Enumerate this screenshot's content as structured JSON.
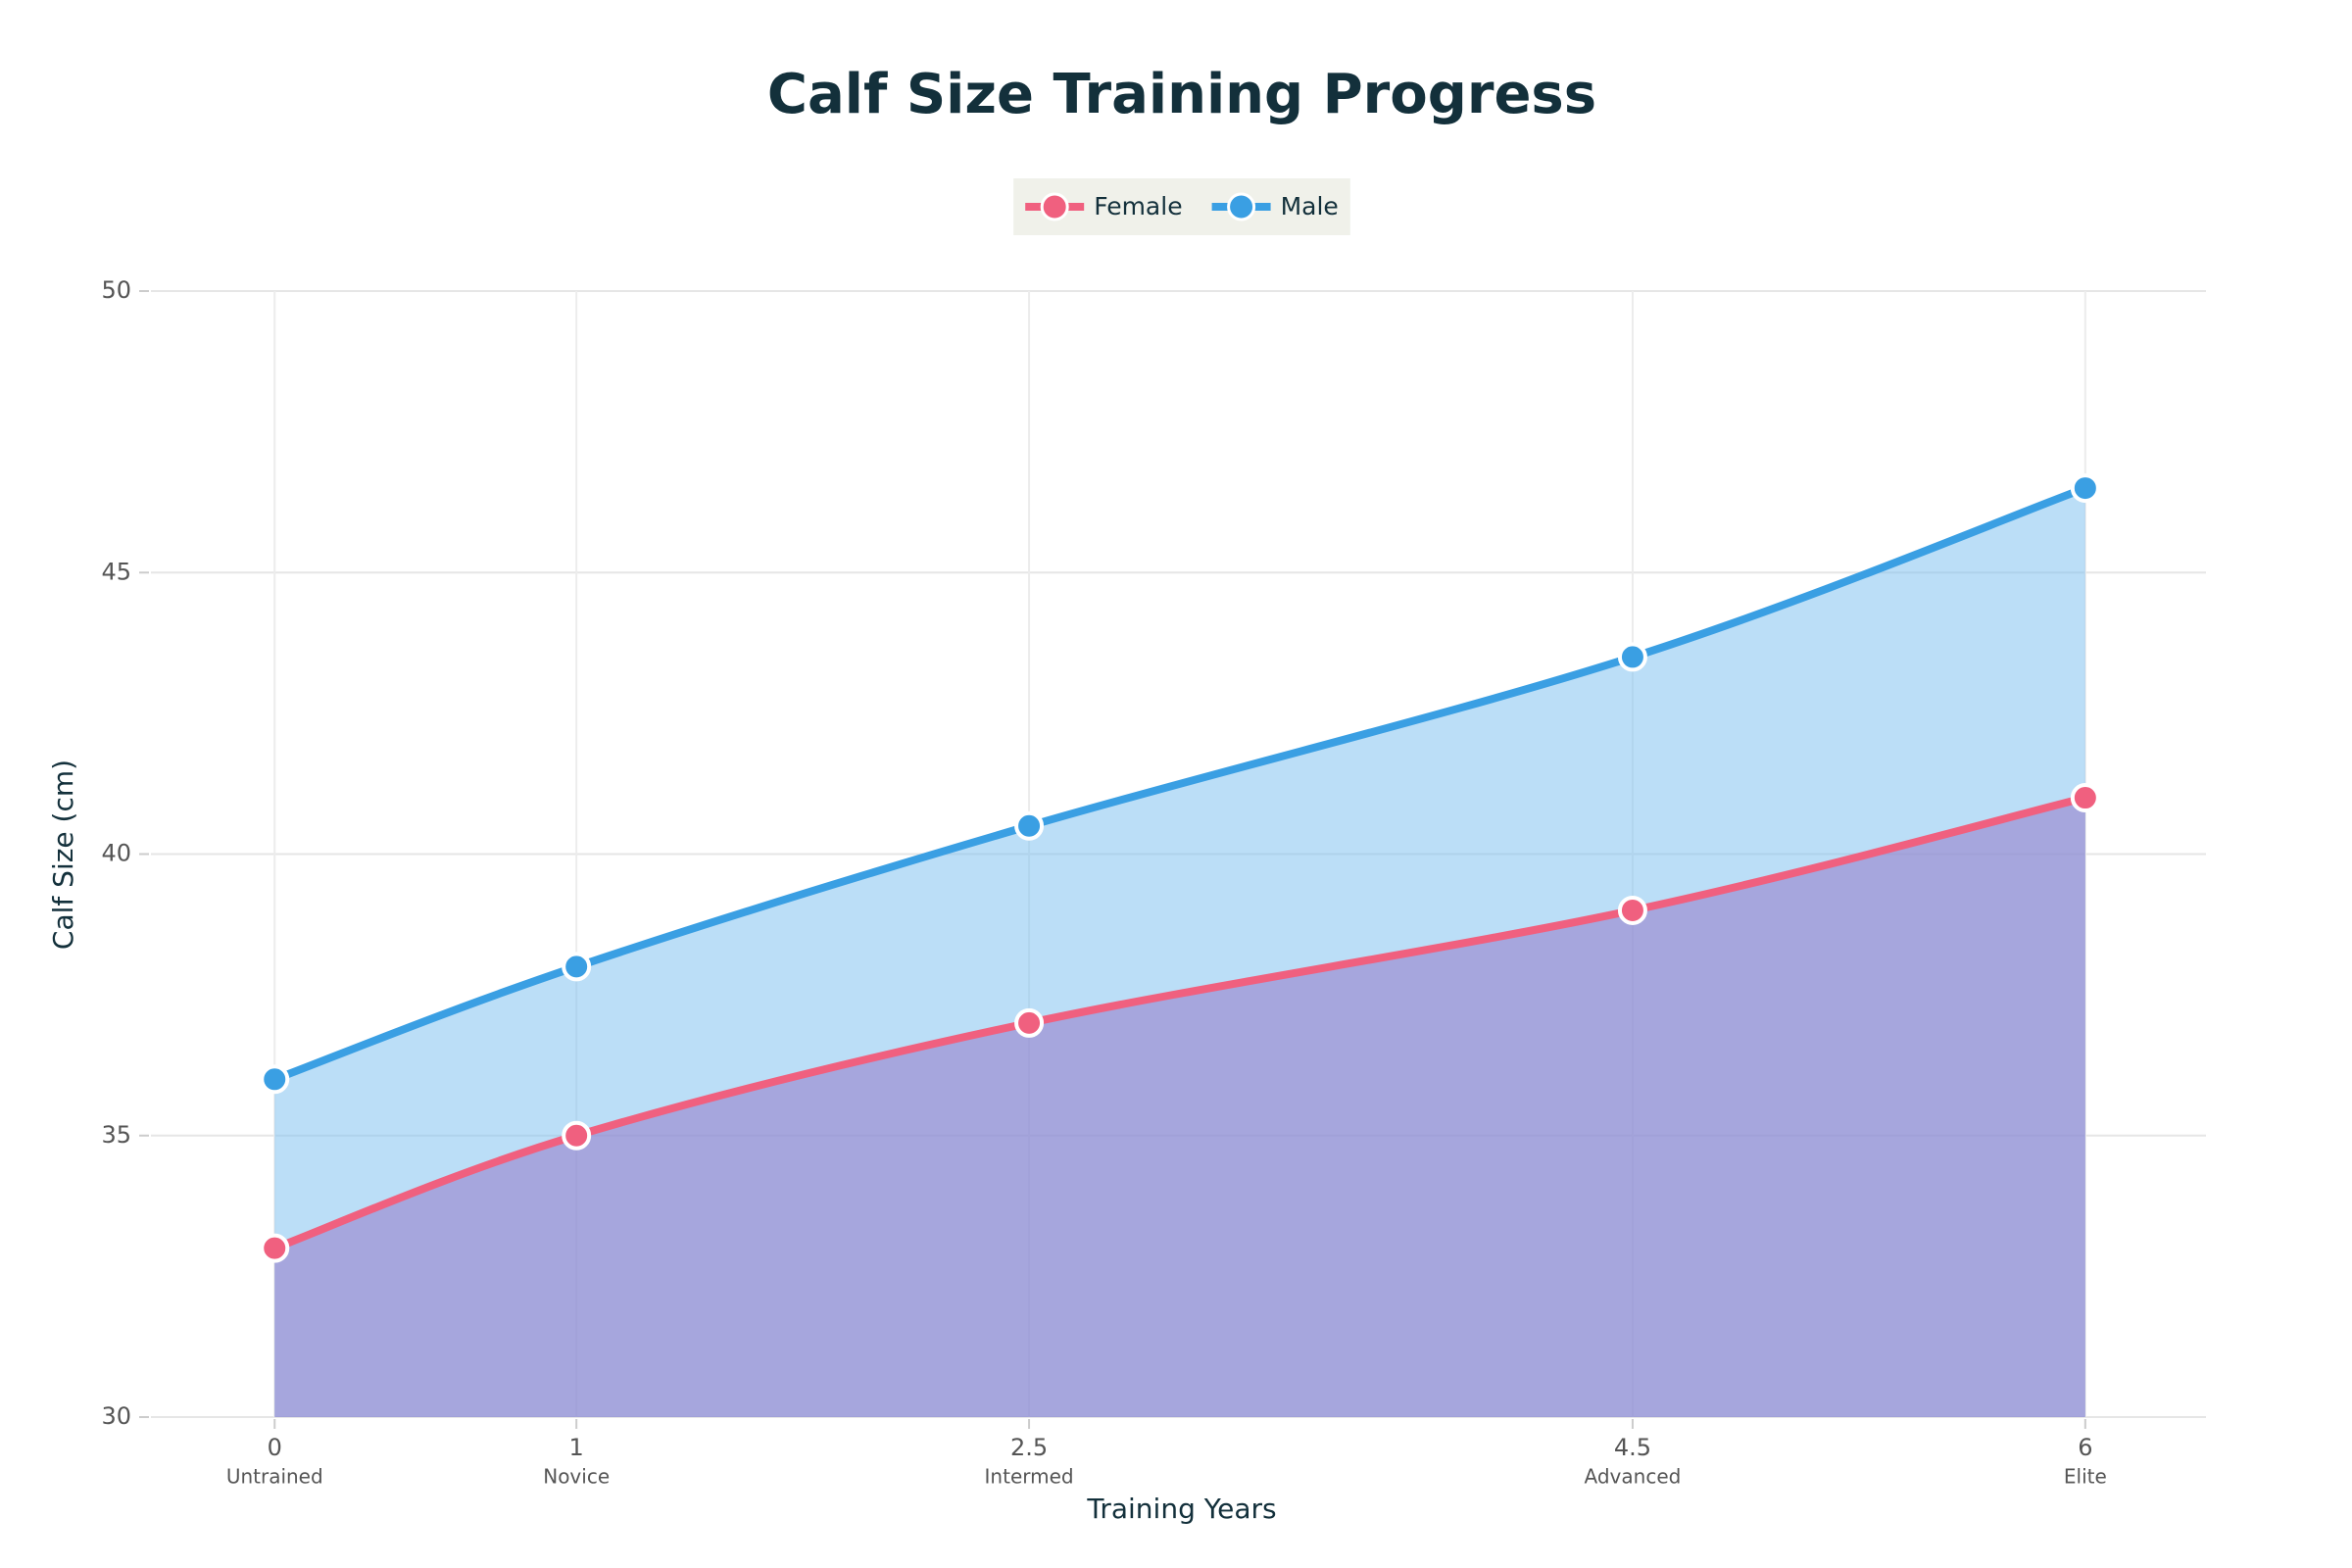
{
  "chart_data": {
    "type": "line",
    "title": "Calf Size Training Progress",
    "x_label": "Training Years",
    "y_label": "Calf Size (cm)",
    "x": [
      0,
      1,
      2.5,
      4.5,
      6
    ],
    "x_tick_sublabels": [
      "Untrained",
      "Novice",
      "Intermed",
      "Advanced",
      "Elite"
    ],
    "series": [
      {
        "name": "Female",
        "color": "#f0607f",
        "fill": "rgba(150,120,200,0.55)",
        "values": [
          33,
          35,
          37,
          39,
          41
        ]
      },
      {
        "name": "Male",
        "color": "#3a9fe3",
        "fill": "rgba(120,190,240,0.5)",
        "values": [
          36,
          38,
          40.5,
          43.5,
          46.5
        ]
      }
    ],
    "xlim": [
      -0.41,
      6.4
    ],
    "ylim": [
      30,
      50
    ],
    "xticks": [
      0,
      1,
      2.5,
      4.5,
      6
    ],
    "yticks": [
      30,
      35,
      40,
      45,
      50
    ],
    "grid": true,
    "legend": "top"
  }
}
